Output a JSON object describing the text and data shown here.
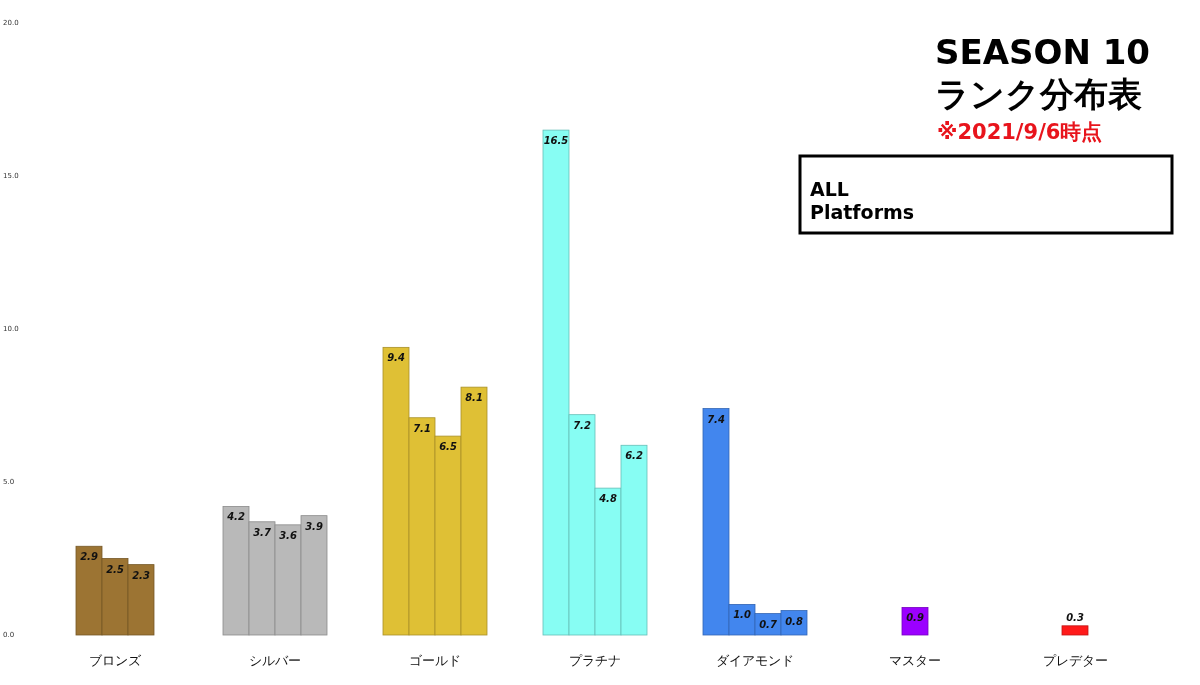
{
  "chart_data": {
    "type": "bar",
    "title": "SEASON 10 ランク分布表",
    "subtitle": "※2021/9/6時点",
    "annotations": [
      "ALL Platforms"
    ],
    "categories": [
      "ブロンズ",
      "シルバー",
      "ゴールド",
      "プラチナ",
      "ダイアモンド",
      "マスター",
      "プレデター"
    ],
    "series": [
      {
        "values": [
          2.9,
          4.2,
          9.4,
          16.5,
          7.4,
          0.9,
          0.3
        ],
        "value_labels": [
          "2.9",
          "4.2",
          "9.4",
          "16.5",
          "7.4",
          "0.9",
          "0.3"
        ],
        "colors": [
          "#9c7433",
          "#b9b9b9",
          "#dfc035",
          "#87fdf3",
          "#4286ee",
          "#9b00ff",
          "#ff1a1a"
        ]
      },
      {
        "values": [
          2.5,
          3.7,
          7.1,
          7.2,
          1.0,
          null,
          null
        ],
        "value_labels": [
          "2.5",
          "3.7",
          "7.1",
          "7.2",
          "1.0",
          null,
          null
        ],
        "colors": [
          "#9c7433",
          "#b9b9b9",
          "#dfc035",
          "#87fdf3",
          "#4286ee",
          null,
          null
        ]
      },
      {
        "values": [
          2.3,
          3.6,
          6.5,
          4.8,
          0.7,
          null,
          null
        ],
        "value_labels": [
          "2.3",
          "3.6",
          "6.5",
          "4.8",
          "0.7",
          null,
          null
        ],
        "colors": [
          "#9c7433",
          "#b9b9b9",
          "#dfc035",
          "#87fdf3",
          "#4286ee",
          null,
          null
        ]
      },
      {
        "values": [
          null,
          3.9,
          8.1,
          6.2,
          0.8,
          null,
          null
        ],
        "value_labels": [
          null,
          "3.9",
          "8.1",
          "6.2",
          "0.8",
          null,
          null
        ],
        "colors": [
          null,
          "#b9b9b9",
          "#dfc035",
          "#87fdf3",
          "#4286ee",
          null,
          null
        ]
      }
    ],
    "ylim": [
      0,
      20
    ],
    "yticks": [
      {
        "value": 0,
        "label": "0.0"
      },
      {
        "value": 5,
        "label": "5.0"
      },
      {
        "value": 10,
        "label": "10.0"
      },
      {
        "value": 15,
        "label": "15.0"
      },
      {
        "value": 20,
        "label": "20.0"
      }
    ]
  }
}
